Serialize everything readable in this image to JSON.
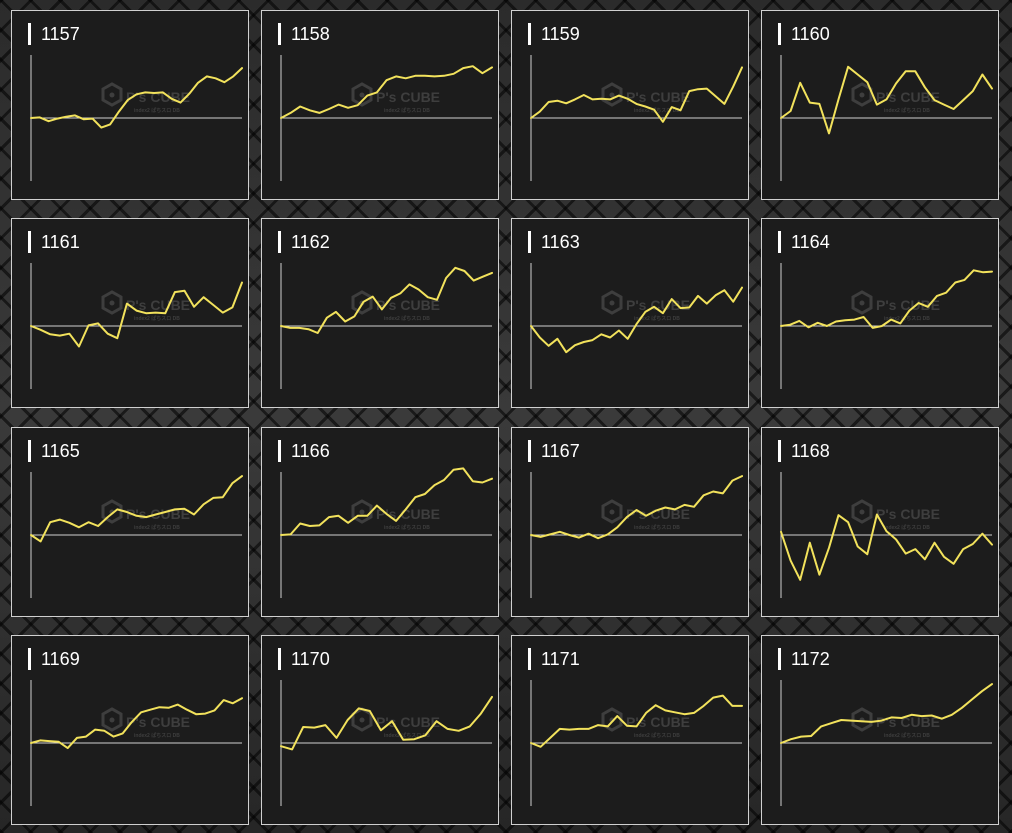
{
  "colors": {
    "line": "#f2e25c",
    "axis": "#cfcfcf",
    "panel_bg": "#1c1c1c",
    "panel_border": "#d0d0d0",
    "title": "#ffffff",
    "watermark": "#5a5a5a"
  },
  "watermark": {
    "logo_text": "P's CUBE",
    "sub_text": "index2 ぱちスロ DB"
  },
  "chart_data": [
    {
      "type": "line",
      "title": "1157",
      "ylim": [
        -1,
        1
      ],
      "values": [
        0,
        0.01,
        -0.05,
        -0.01,
        0.02,
        0.04,
        -0.02,
        -0.01,
        -0.15,
        -0.1,
        0.1,
        0.28,
        0.37,
        0.4,
        0.39,
        0.4,
        0.3,
        0.24,
        0.38,
        0.55,
        0.65,
        0.62,
        0.56,
        0.65,
        0.78
      ]
    },
    {
      "type": "line",
      "title": "1158",
      "ylim": [
        -1,
        1
      ],
      "values": [
        0,
        0.08,
        0.18,
        0.12,
        0.08,
        0.14,
        0.21,
        0.16,
        0.2,
        0.35,
        0.4,
        0.59,
        0.65,
        0.62,
        0.66,
        0.66,
        0.65,
        0.66,
        0.69,
        0.78,
        0.81,
        0.7,
        0.79
      ]
    },
    {
      "type": "line",
      "title": "1159",
      "ylim": [
        -1,
        1
      ],
      "values": [
        0,
        0.1,
        0.25,
        0.27,
        0.23,
        0.29,
        0.36,
        0.29,
        0.3,
        0.29,
        0.35,
        0.3,
        0.22,
        0.18,
        0.13,
        -0.06,
        0.17,
        0.12,
        0.42,
        0.45,
        0.46,
        0.34,
        0.22,
        0.49,
        0.79
      ]
    },
    {
      "type": "line",
      "title": "1160",
      "ylim": [
        -1,
        1
      ],
      "values": [
        0,
        0.11,
        0.55,
        0.24,
        0.22,
        -0.24,
        0.29,
        0.8,
        0.68,
        0.56,
        0.21,
        0.29,
        0.54,
        0.73,
        0.73,
        0.48,
        0.28,
        0.21,
        0.14,
        0.28,
        0.42,
        0.68,
        0.46
      ]
    },
    {
      "type": "line",
      "title": "1161",
      "ylim": [
        -1,
        1
      ],
      "values": [
        0,
        -0.06,
        -0.13,
        -0.15,
        -0.12,
        -0.32,
        0.01,
        0.04,
        -0.12,
        -0.19,
        0.35,
        0.24,
        0.2,
        0.21,
        0.2,
        0.53,
        0.55,
        0.3,
        0.45,
        0.33,
        0.21,
        0.29,
        0.68
      ]
    },
    {
      "type": "line",
      "title": "1162",
      "ylim": [
        -1,
        1
      ],
      "values": [
        0,
        -0.03,
        -0.03,
        -0.05,
        -0.11,
        0.13,
        0.22,
        0.07,
        0.15,
        0.38,
        0.46,
        0.26,
        0.44,
        0.51,
        0.65,
        0.57,
        0.45,
        0.41,
        0.75,
        0.91,
        0.86,
        0.71,
        0.77,
        0.83
      ]
    },
    {
      "type": "line",
      "title": "1163",
      "ylim": [
        -1,
        1
      ],
      "values": [
        0,
        -0.18,
        -0.31,
        -0.2,
        -0.41,
        -0.3,
        -0.25,
        -0.22,
        -0.13,
        -0.18,
        -0.07,
        -0.2,
        0.03,
        0.22,
        0.3,
        0.2,
        0.42,
        0.28,
        0.29,
        0.47,
        0.35,
        0.48,
        0.56,
        0.38,
        0.6
      ]
    },
    {
      "type": "line",
      "title": "1164",
      "ylim": [
        -1,
        1
      ],
      "values": [
        0,
        0.02,
        0.08,
        -0.02,
        0.05,
        0,
        0.07,
        0.09,
        0.1,
        0.14,
        -0.03,
        0,
        0.1,
        0.04,
        0.24,
        0.36,
        0.3,
        0.47,
        0.52,
        0.68,
        0.72,
        0.87,
        0.84,
        0.85
      ]
    },
    {
      "type": "line",
      "title": "1165",
      "ylim": [
        -1,
        1
      ],
      "values": [
        0,
        -0.1,
        0.2,
        0.24,
        0.19,
        0.12,
        0.2,
        0.14,
        0.28,
        0.4,
        0.36,
        0.3,
        0.28,
        0.32,
        0.36,
        0.4,
        0.41,
        0.32,
        0.48,
        0.58,
        0.59,
        0.81,
        0.92
      ]
    },
    {
      "type": "line",
      "title": "1166",
      "ylim": [
        -1,
        1
      ],
      "values": [
        0,
        0.01,
        0.18,
        0.14,
        0.15,
        0.28,
        0.3,
        0.19,
        0.3,
        0.3,
        0.46,
        0.33,
        0.22,
        0.4,
        0.59,
        0.64,
        0.78,
        0.86,
        1.02,
        1.04,
        0.84,
        0.82,
        0.88
      ]
    },
    {
      "type": "line",
      "title": "1167",
      "ylim": [
        -1,
        1
      ],
      "values": [
        0,
        -0.03,
        0.01,
        0.05,
        0,
        -0.04,
        0.02,
        -0.05,
        0.01,
        0.12,
        0.28,
        0.39,
        0.3,
        0.38,
        0.43,
        0.4,
        0.47,
        0.44,
        0.62,
        0.68,
        0.65,
        0.85,
        0.92
      ]
    },
    {
      "type": "line",
      "title": "1168",
      "ylim": [
        -1,
        1
      ],
      "values": [
        0.05,
        -0.4,
        -0.7,
        -0.12,
        -0.62,
        -0.2,
        0.31,
        0.2,
        -0.18,
        -0.3,
        0.32,
        0.06,
        -0.07,
        -0.29,
        -0.22,
        -0.38,
        -0.12,
        -0.34,
        -0.45,
        -0.22,
        -0.14,
        0.02,
        -0.15
      ]
    },
    {
      "type": "line",
      "title": "1169",
      "ylim": [
        -1,
        1
      ],
      "values": [
        0,
        0.04,
        0.03,
        0.02,
        -0.08,
        0.08,
        0.1,
        0.21,
        0.19,
        0.1,
        0.15,
        0.33,
        0.48,
        0.52,
        0.56,
        0.55,
        0.6,
        0.52,
        0.45,
        0.46,
        0.51,
        0.67,
        0.62,
        0.7
      ]
    },
    {
      "type": "line",
      "title": "1170",
      "ylim": [
        -1,
        1
      ],
      "values": [
        -0.05,
        -0.1,
        0.25,
        0.24,
        0.28,
        0.08,
        0.36,
        0.54,
        0.5,
        0.2,
        0.34,
        0.05,
        0.06,
        0.12,
        0.34,
        0.22,
        0.19,
        0.26,
        0.46,
        0.72
      ]
    },
    {
      "type": "line",
      "title": "1171",
      "ylim": [
        -1,
        1
      ],
      "values": [
        0,
        -0.06,
        0.08,
        0.22,
        0.21,
        0.22,
        0.22,
        0.28,
        0.26,
        0.42,
        0.27,
        0.26,
        0.47,
        0.59,
        0.51,
        0.48,
        0.45,
        0.47,
        0.58,
        0.71,
        0.74,
        0.58,
        0.58
      ]
    },
    {
      "type": "line",
      "title": "1172",
      "ylim": [
        -1,
        1
      ],
      "values": [
        0,
        0.06,
        0.1,
        0.11,
        0.26,
        0.31,
        0.36,
        0.35,
        0.34,
        0.33,
        0.35,
        0.4,
        0.39,
        0.44,
        0.42,
        0.43,
        0.38,
        0.44,
        0.55,
        0.68,
        0.81,
        0.92
      ]
    }
  ]
}
